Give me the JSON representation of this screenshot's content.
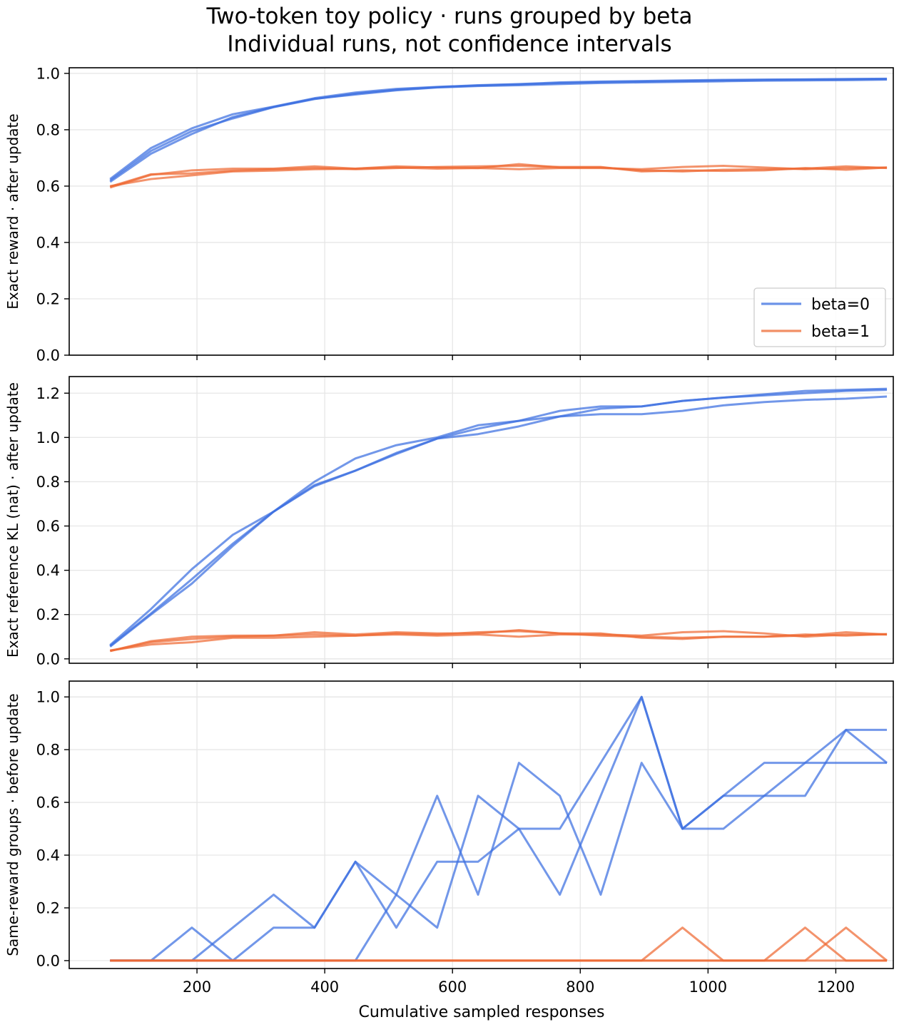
{
  "figure": {
    "title_line1": "Two-token toy policy · runs grouped by beta",
    "title_line2": "Individual runs, not confidence intervals",
    "xlabel": "Cumulative sampled responses"
  },
  "colors": {
    "beta0": "#3b6fe0",
    "beta1": "#ee6a33"
  },
  "legend": {
    "placement": "lower-right",
    "items": [
      "beta=0",
      "beta=1"
    ]
  },
  "chart_data": [
    {
      "type": "line",
      "ylabel": "Exact reward · after update",
      "xlim": [
        0,
        1290
      ],
      "ylim": [
        0,
        1.02
      ],
      "xticks": [
        200,
        400,
        600,
        800,
        1000,
        1200
      ],
      "yticks": [
        0.0,
        0.2,
        0.4,
        0.6,
        0.8,
        1.0
      ],
      "ytick_labels": [
        "0.0",
        "0.2",
        "0.4",
        "0.6",
        "0.8",
        "1.0"
      ],
      "grid": true,
      "x": [
        64,
        128,
        192,
        256,
        320,
        384,
        448,
        512,
        576,
        640,
        704,
        768,
        832,
        896,
        960,
        1024,
        1088,
        1152,
        1216,
        1280
      ],
      "series": [
        {
          "name": "beta=0",
          "group": "beta0",
          "values": [
            0.625,
            0.735,
            0.805,
            0.855,
            0.882,
            0.912,
            0.932,
            0.945,
            0.952,
            0.958,
            0.962,
            0.968,
            0.971,
            0.973,
            0.975,
            0.977,
            0.978,
            0.979,
            0.98,
            0.981
          ]
        },
        {
          "name": "",
          "group": "beta0",
          "values": [
            0.615,
            0.715,
            0.785,
            0.845,
            0.881,
            0.91,
            0.925,
            0.94,
            0.95,
            0.955,
            0.958,
            0.962,
            0.966,
            0.968,
            0.97,
            0.972,
            0.974,
            0.975,
            0.976,
            0.978
          ]
        },
        {
          "name": "",
          "group": "beta0",
          "values": [
            0.62,
            0.725,
            0.795,
            0.84,
            0.88,
            0.909,
            0.928,
            0.942,
            0.951,
            0.957,
            0.961,
            0.966,
            0.969,
            0.971,
            0.973,
            0.975,
            0.977,
            0.978,
            0.979,
            0.98
          ]
        },
        {
          "name": "beta=1",
          "group": "beta1",
          "values": [
            0.595,
            0.64,
            0.656,
            0.662,
            0.662,
            0.67,
            0.662,
            0.67,
            0.666,
            0.664,
            0.678,
            0.666,
            0.666,
            0.656,
            0.652,
            0.658,
            0.66,
            0.662,
            0.67,
            0.664
          ]
        },
        {
          "name": "",
          "group": "beta1",
          "values": [
            0.6,
            0.625,
            0.638,
            0.652,
            0.655,
            0.66,
            0.662,
            0.666,
            0.662,
            0.664,
            0.66,
            0.664,
            0.664,
            0.66,
            0.668,
            0.672,
            0.666,
            0.66,
            0.664,
            0.666
          ]
        },
        {
          "name": "",
          "group": "beta1",
          "values": [
            0.598,
            0.642,
            0.645,
            0.655,
            0.66,
            0.664,
            0.66,
            0.664,
            0.668,
            0.67,
            0.672,
            0.668,
            0.668,
            0.652,
            0.656,
            0.654,
            0.656,
            0.664,
            0.658,
            0.666
          ]
        }
      ]
    },
    {
      "type": "line",
      "ylabel": "Exact reference KL (nat) · after update",
      "xlim": [
        0,
        1290
      ],
      "ylim": [
        -0.02,
        1.275
      ],
      "xticks": [
        200,
        400,
        600,
        800,
        1000,
        1200
      ],
      "yticks": [
        0.0,
        0.2,
        0.4,
        0.6,
        0.8,
        1.0,
        1.2
      ],
      "ytick_labels": [
        "0.0",
        "0.2",
        "0.4",
        "0.6",
        "0.8",
        "1.0",
        "1.2"
      ],
      "grid": true,
      "x": [
        64,
        128,
        192,
        256,
        320,
        384,
        448,
        512,
        576,
        640,
        704,
        768,
        832,
        896,
        960,
        1024,
        1088,
        1152,
        1216,
        1280
      ],
      "series": [
        {
          "name": "beta=0",
          "group": "beta0",
          "values": [
            0.062,
            0.225,
            0.405,
            0.56,
            0.665,
            0.8,
            0.905,
            0.965,
            1.0,
            1.055,
            1.075,
            1.12,
            1.14,
            1.14,
            1.165,
            1.18,
            1.195,
            1.21,
            1.215,
            1.22
          ]
        },
        {
          "name": "",
          "group": "beta0",
          "values": [
            0.058,
            0.205,
            0.36,
            0.52,
            0.665,
            0.78,
            0.85,
            0.93,
            0.995,
            1.015,
            1.05,
            1.095,
            1.105,
            1.105,
            1.12,
            1.145,
            1.16,
            1.17,
            1.175,
            1.185
          ]
        },
        {
          "name": "",
          "group": "beta0",
          "values": [
            0.055,
            0.2,
            0.34,
            0.51,
            0.665,
            0.785,
            0.85,
            0.925,
            0.995,
            1.04,
            1.075,
            1.095,
            1.13,
            1.14,
            1.165,
            1.18,
            1.19,
            1.2,
            1.21,
            1.215
          ]
        },
        {
          "name": "beta=1",
          "group": "beta1",
          "values": [
            0.035,
            0.08,
            0.1,
            0.105,
            0.105,
            0.12,
            0.11,
            0.12,
            0.115,
            0.115,
            0.13,
            0.115,
            0.115,
            0.095,
            0.09,
            0.1,
            0.1,
            0.105,
            0.12,
            0.11
          ]
        },
        {
          "name": "",
          "group": "beta1",
          "values": [
            0.038,
            0.065,
            0.075,
            0.095,
            0.095,
            0.1,
            0.105,
            0.11,
            0.105,
            0.11,
            0.1,
            0.11,
            0.11,
            0.105,
            0.12,
            0.125,
            0.115,
            0.1,
            0.11,
            0.11
          ]
        },
        {
          "name": "",
          "group": "beta1",
          "values": [
            0.036,
            0.075,
            0.09,
            0.1,
            0.105,
            0.11,
            0.105,
            0.115,
            0.11,
            0.12,
            0.125,
            0.115,
            0.105,
            0.1,
            0.095,
            0.1,
            0.1,
            0.11,
            0.105,
            0.112
          ]
        }
      ]
    },
    {
      "type": "line",
      "ylabel": "Same-reward groups · before update",
      "xlim": [
        0,
        1290
      ],
      "ylim": [
        -0.03,
        1.06
      ],
      "xticks": [
        200,
        400,
        600,
        800,
        1000,
        1200
      ],
      "xtick_labels": [
        "200",
        "400",
        "600",
        "800",
        "1000",
        "1200"
      ],
      "yticks": [
        0.0,
        0.2,
        0.4,
        0.6,
        0.8,
        1.0
      ],
      "ytick_labels": [
        "0.0",
        "0.2",
        "0.4",
        "0.6",
        "0.8",
        "1.0"
      ],
      "grid": true,
      "x": [
        64,
        128,
        192,
        256,
        320,
        384,
        448,
        512,
        576,
        640,
        704,
        768,
        832,
        896,
        960,
        1024,
        1088,
        1152,
        1216,
        1280
      ],
      "series": [
        {
          "name": "beta=0",
          "group": "beta0",
          "values": [
            0,
            0,
            0.125,
            0,
            0.125,
            0.125,
            0.375,
            0.125,
            0.375,
            0.375,
            0.5,
            0.5,
            0.75,
            1.0,
            0.5,
            0.625,
            0.75,
            0.75,
            0.875,
            0.75
          ]
        },
        {
          "name": "",
          "group": "beta0",
          "values": [
            0,
            0,
            0,
            0.125,
            0.25,
            0.125,
            0.375,
            0.25,
            0.125,
            0.625,
            0.5,
            0.25,
            0.625,
            1.0,
            0.5,
            0.625,
            0.625,
            0.625,
            0.875,
            0.875
          ]
        },
        {
          "name": "",
          "group": "beta0",
          "values": [
            0,
            0,
            0,
            0,
            0,
            0,
            0,
            0.25,
            0.625,
            0.25,
            0.75,
            0.625,
            0.25,
            0.75,
            0.5,
            0.5,
            0.625,
            0.75,
            0.75,
            0.75
          ]
        },
        {
          "name": "beta=1",
          "group": "beta1",
          "values": [
            0,
            0,
            0,
            0,
            0,
            0,
            0,
            0,
            0,
            0,
            0,
            0,
            0,
            0,
            0.125,
            0,
            0,
            0.125,
            0,
            0
          ]
        },
        {
          "name": "",
          "group": "beta1",
          "values": [
            0,
            0,
            0,
            0,
            0,
            0,
            0,
            0,
            0,
            0,
            0,
            0,
            0,
            0,
            0,
            0,
            0,
            0,
            0.125,
            0
          ]
        },
        {
          "name": "",
          "group": "beta1",
          "values": [
            0,
            0,
            0,
            0,
            0,
            0,
            0,
            0,
            0,
            0,
            0,
            0,
            0,
            0,
            0,
            0,
            0,
            0,
            0,
            0
          ]
        }
      ]
    }
  ]
}
